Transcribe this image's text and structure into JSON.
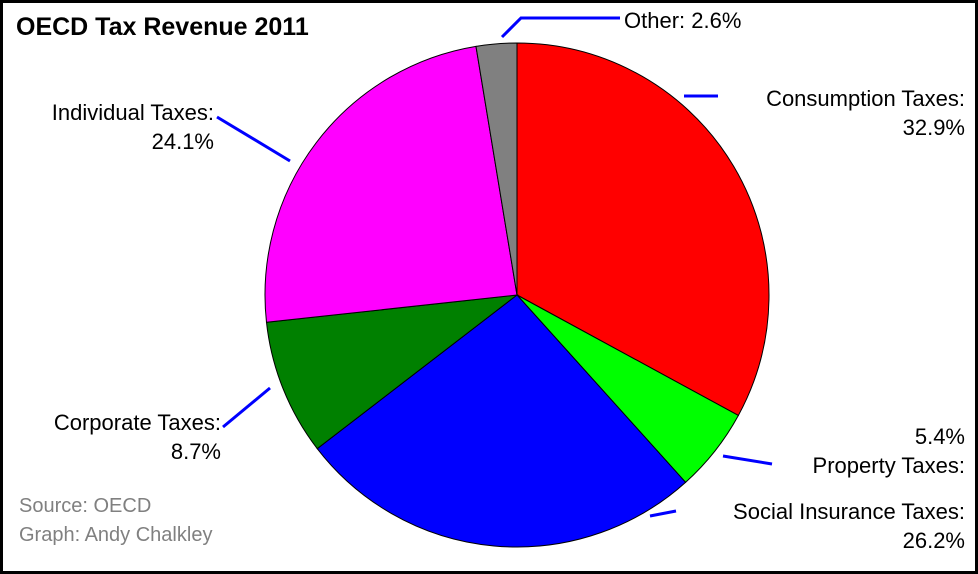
{
  "title": "OECD Tax Revenue 2011",
  "chart_data": {
    "type": "pie",
    "title": "OECD Tax Revenue 2011",
    "slices": [
      {
        "label": "Consumption Taxes",
        "value": 32.9,
        "color": "#ff0000"
      },
      {
        "label": "Property Taxes",
        "value": 5.4,
        "color": "#00ff00"
      },
      {
        "label": "Social Insurance Taxes",
        "value": 26.2,
        "color": "#0000ff"
      },
      {
        "label": "Corporate Taxes",
        "value": 8.7,
        "color": "#008000"
      },
      {
        "label": "Individual Taxes",
        "value": 24.1,
        "color": "#ff00ff"
      },
      {
        "label": "Other",
        "value": 2.6,
        "color": "#808080"
      }
    ],
    "start_angle": "12 o'clock, clockwise",
    "leader_line_color": "#0000ff"
  },
  "labels": {
    "other": {
      "name": "Other:",
      "pct": "2.6%"
    },
    "consumption": {
      "name": "Consumption Taxes:",
      "pct": "32.9%"
    },
    "individual": {
      "name": "Individual Taxes:",
      "pct": "24.1%"
    },
    "corporate": {
      "name": "Corporate Taxes:",
      "pct": "8.7%"
    },
    "property": {
      "name": "Property Taxes:",
      "pct": "5.4%"
    },
    "social": {
      "name": "Social Insurance Taxes:",
      "pct": "26.2%"
    }
  },
  "credits": {
    "source": "Source: OECD",
    "graph": "Graph: Andy Chalkley"
  }
}
